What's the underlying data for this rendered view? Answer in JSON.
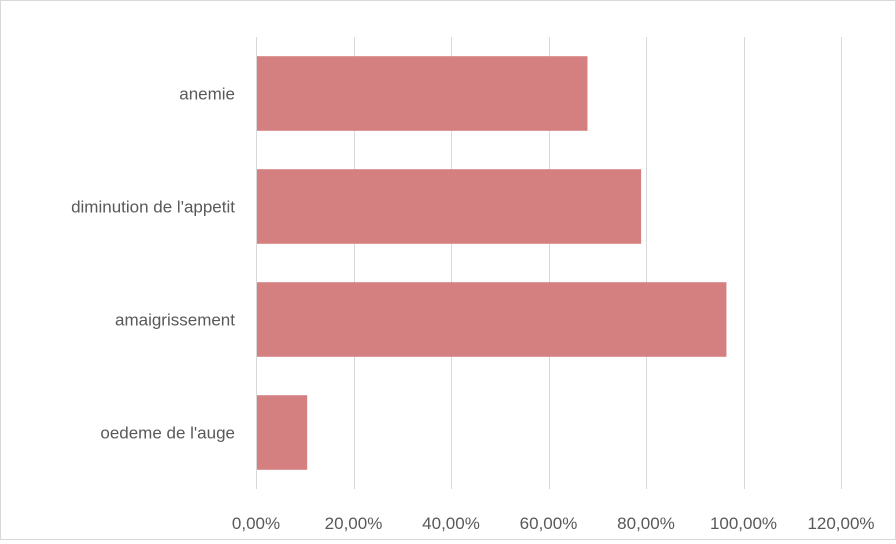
{
  "chart_data": {
    "type": "bar",
    "orientation": "horizontal",
    "categories": [
      "anemie",
      "diminution de l'appetit",
      "amaigrissement",
      "oedeme de l'auge"
    ],
    "values": [
      68,
      79,
      96.5,
      10.5
    ],
    "value_unit": "percent",
    "xlim": [
      0,
      120
    ],
    "xticks": [
      0,
      20,
      40,
      60,
      80,
      100,
      120
    ],
    "xtick_labels": [
      "0,00%",
      "20,00%",
      "40,00%",
      "60,00%",
      "80,00%",
      "100,00%",
      "120,00%"
    ],
    "title": "",
    "xlabel": "",
    "ylabel": "",
    "grid": "vertical",
    "legend": "none",
    "bar_color": "#D58080",
    "grid_color": "#d9d9d9",
    "text_color": "#595959"
  }
}
